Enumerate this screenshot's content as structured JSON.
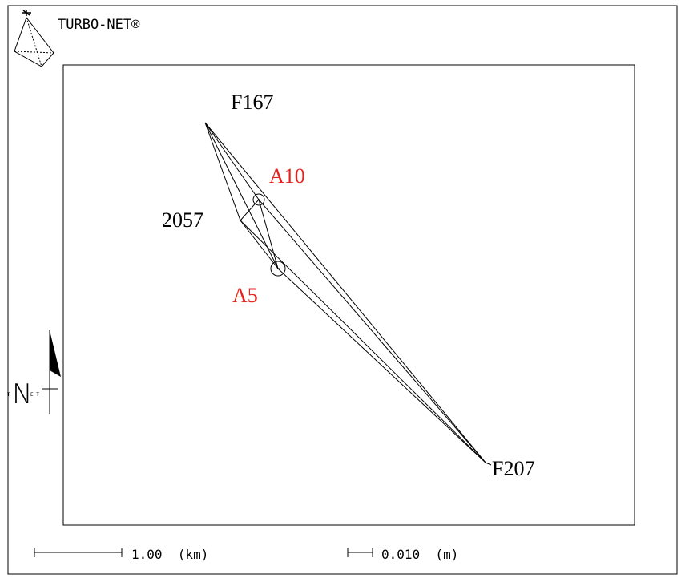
{
  "logo": {
    "text": "TURBO-NET®"
  },
  "stations": {
    "F167": "F167",
    "F207": "F207",
    "S2057": "2057",
    "A10": "A10",
    "A5": "A5"
  },
  "colors": {
    "stroke": "#000000",
    "highlight": "#e8201c"
  },
  "scalebars": {
    "distance": "1.00  (km)",
    "error": "0.010  (m)"
  },
  "north_arrow": {
    "n_label": "N",
    "left_letter": "T",
    "right_letters": "E T"
  }
}
